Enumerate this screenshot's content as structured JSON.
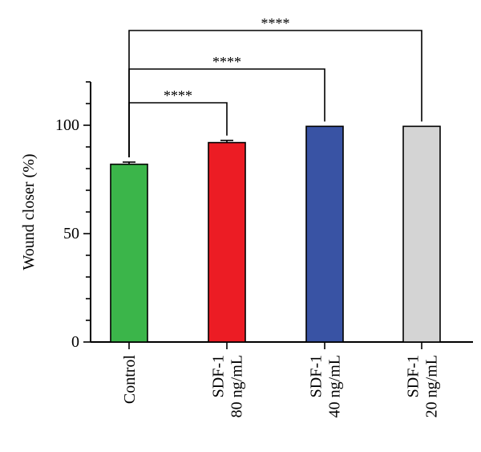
{
  "chart_data": {
    "type": "bar",
    "title": "",
    "xlabel": "",
    "ylabel": "Wound closer (%)",
    "ylim": [
      0,
      120
    ],
    "yticks": [
      0,
      50,
      100
    ],
    "categories": [
      [
        "Control"
      ],
      [
        "SDF-1",
        "80 ng/mL"
      ],
      [
        "SDF-1",
        "40 ng/mL"
      ],
      [
        "SDF-1",
        "20 ng/mL"
      ]
    ],
    "values": [
      82,
      92,
      99.5,
      99.5
    ],
    "errors": [
      1,
      1,
      0,
      0
    ],
    "colors": [
      "#3bb54a",
      "#ec1c24",
      "#3953a4",
      "#d4d4d4"
    ],
    "significance": [
      {
        "from": 0,
        "to": 1,
        "label": "****"
      },
      {
        "from": 0,
        "to": 2,
        "label": "****"
      },
      {
        "from": 0,
        "to": 3,
        "label": "****"
      }
    ]
  }
}
